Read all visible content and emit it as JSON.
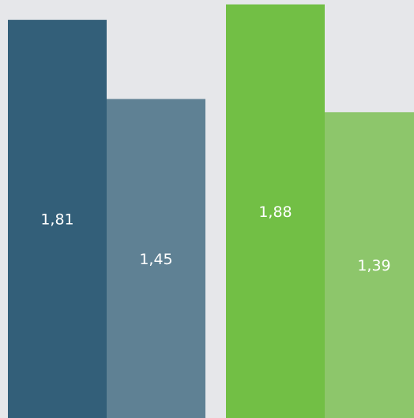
{
  "background_color": "#e6e7ea",
  "chart_data": {
    "type": "bar",
    "title": "",
    "xlabel": "",
    "ylabel": "",
    "ylim": [
      0,
      1.9
    ],
    "grid": false,
    "legend": "none",
    "groups": [
      {
        "bars": [
          {
            "value": 1.81,
            "label": "1,81",
            "color": "#335f79"
          },
          {
            "value": 1.45,
            "label": "1,45",
            "color": "#5f8194"
          }
        ]
      },
      {
        "bars": [
          {
            "value": 1.88,
            "label": "1,88",
            "color": "#72bf45"
          },
          {
            "value": 1.39,
            "label": "1,39",
            "color": "#8dc66b"
          }
        ]
      }
    ]
  }
}
